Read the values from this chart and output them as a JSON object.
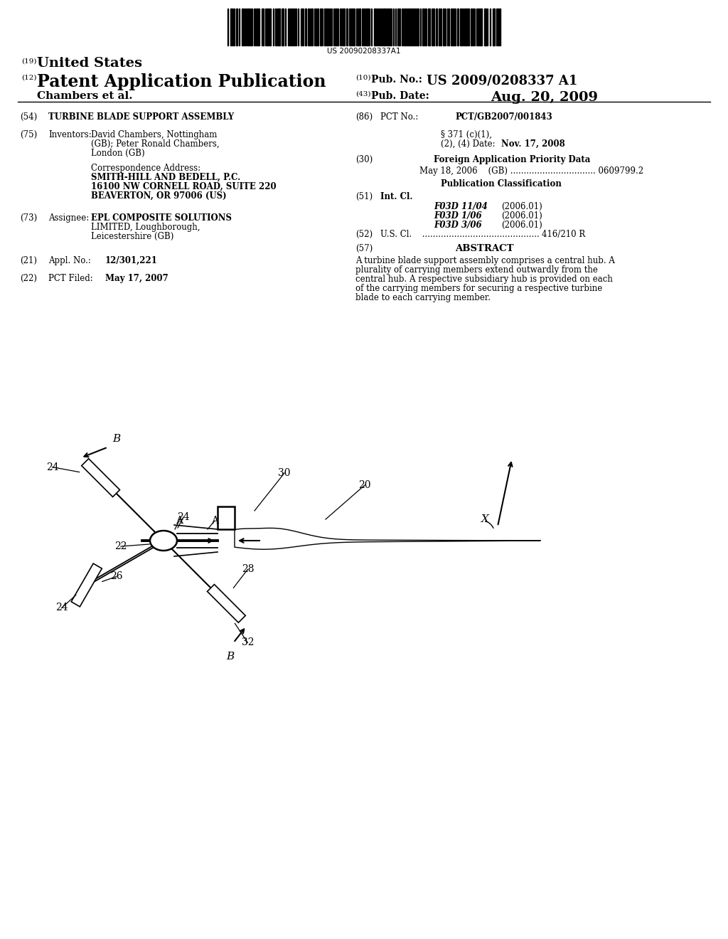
{
  "barcode_text": "US 20090208337A1",
  "header_19": "(19)",
  "header_19_text": "United States",
  "header_12": "(12)",
  "header_12_text": "Patent Application Publication",
  "header_10": "(10)",
  "header_10_text": "Pub. No.:",
  "header_10_val": "US 2009/0208337 A1",
  "header_43": "(43)",
  "header_43_text": "Pub. Date:",
  "header_43_val": "Aug. 20, 2009",
  "authors": "Chambers et al.",
  "field_54_text": "TURBINE BLADE SUPPORT ASSEMBLY",
  "field_75_text1": "David Chambers, Nottingham",
  "field_75_text2": "(GB); Peter Ronald Chambers,",
  "field_75_text3": "London (GB)",
  "corr_line1": "Correspondence Address:",
  "corr_line2": "SMITH-HILL AND BEDELL, P.C.",
  "corr_line3": "16100 NW CORNELL ROAD, SUITE 220",
  "corr_line4": "BEAVERTON, OR 97006 (US)",
  "field_73_text1": "EPL COMPOSITE SOLUTIONS",
  "field_73_text2": "LIMITED, Loughborough,",
  "field_73_text3": "Leicestershire (GB)",
  "field_21_val": "12/301,221",
  "field_22_val": "May 17, 2007",
  "field_86_val": "PCT/GB2007/001843",
  "field_371_line1": "§ 371 (c)(1),",
  "field_371_line2": "(2), (4) Date:",
  "field_371_val": "Nov. 17, 2008",
  "field_30_text": "Foreign Application Priority Data",
  "field_30_detail": "May 18, 2006    (GB) ................................ 0609799.2",
  "pub_class_header": "Publication Classification",
  "field_51_items": [
    [
      "F03D 11/04",
      "(2006.01)"
    ],
    [
      "F03D 1/06",
      "(2006.01)"
    ],
    [
      "F03D 3/06",
      "(2006.01)"
    ]
  ],
  "field_52_dots": " ............................................",
  "field_52_val": "416/210 R",
  "field_57_label": "ABSTRACT",
  "abstract_lines": [
    "A turbine blade support assembly comprises a central hub. A",
    "plurality of carrying members extend outwardly from the",
    "central hub. A respective subsidiary hub is provided on each",
    "of the carrying members for securing a respective turbine",
    "blade to each carrying member."
  ],
  "bg_color": "#ffffff"
}
